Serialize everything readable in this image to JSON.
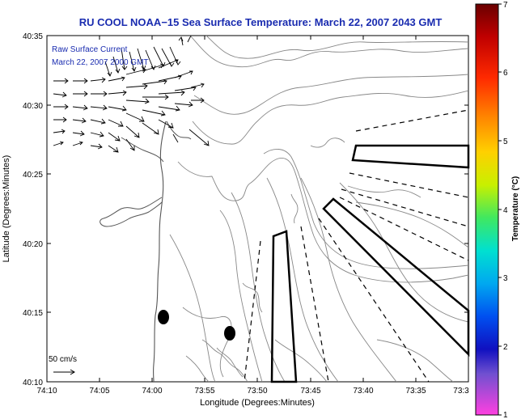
{
  "title": "RU COOL  NOAA−15  Sea Surface Temperature:  March 22, 2007 2043 GMT",
  "legend": {
    "line1": "Raw Surface Current",
    "line2": "March 22, 2007 2000 GMT"
  },
  "scale": {
    "label": "50 cm/s"
  },
  "axes": {
    "xlabel": "Longitude (Degrees:Minutes)",
    "ylabel": "Latitude (Degrees:Minutes)",
    "xticks": [
      "74:10",
      "74:05",
      "74:00",
      "73:55",
      "73:50",
      "73:45",
      "73:40",
      "73:35",
      "73:3"
    ],
    "yticks": [
      "40:35",
      "40:30",
      "40:25",
      "40:20",
      "40:15",
      "40:10"
    ]
  },
  "colorbar": {
    "label": "Temperature (°C)",
    "ticks": [
      "7",
      "6",
      "5",
      "4",
      "3",
      "2",
      "1"
    ]
  },
  "colors": {
    "title": "#1a2cb0",
    "legend": "#1a2cb0",
    "axis": "#000000",
    "contour": "#888888"
  }
}
